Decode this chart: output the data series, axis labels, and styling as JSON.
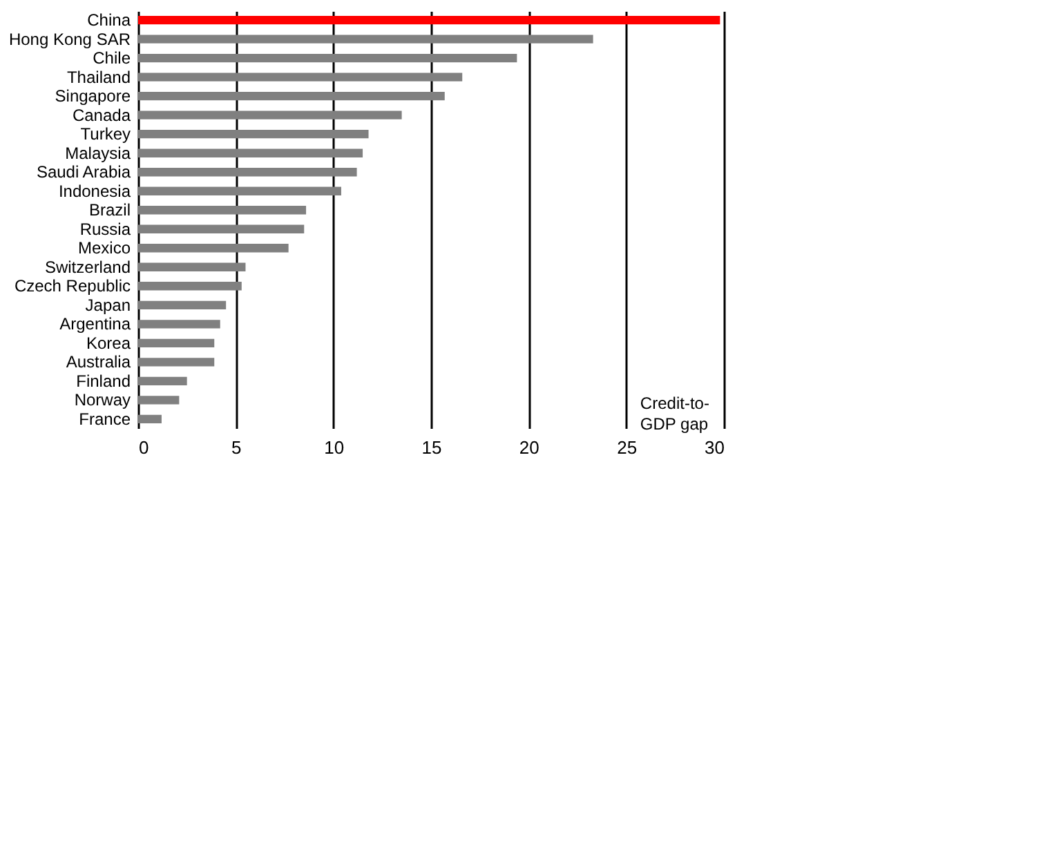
{
  "chart_data": {
    "type": "bar",
    "orientation": "horizontal",
    "categories": [
      "China",
      "Hong Kong SAR",
      "Chile",
      "Thailand",
      "Singapore",
      "Canada",
      "Turkey",
      "Malaysia",
      "Saudi Arabia",
      "Indonesia",
      "Brazil",
      "Russia",
      "Mexico",
      "Switzerland",
      "Czech Republic",
      "Japan",
      "Argentina",
      "Korea",
      "Australia",
      "Finland",
      "Norway",
      "France"
    ],
    "values": [
      29.8,
      23.3,
      19.4,
      16.6,
      15.7,
      13.5,
      11.8,
      11.5,
      11.2,
      10.4,
      8.6,
      8.5,
      7.7,
      5.5,
      5.3,
      4.5,
      4.2,
      3.9,
      3.9,
      2.5,
      2.1,
      1.2
    ],
    "colors": [
      "#ff0000",
      "#808080",
      "#808080",
      "#808080",
      "#808080",
      "#808080",
      "#808080",
      "#808080",
      "#808080",
      "#808080",
      "#808080",
      "#808080",
      "#808080",
      "#808080",
      "#808080",
      "#808080",
      "#808080",
      "#808080",
      "#808080",
      "#808080",
      "#808080",
      "#808080"
    ],
    "xlim": [
      0,
      30
    ],
    "xticks": [
      0,
      5,
      10,
      15,
      20,
      25,
      30
    ],
    "grid": "x",
    "annotations": [
      "Credit-to-\nGDP gap"
    ]
  }
}
